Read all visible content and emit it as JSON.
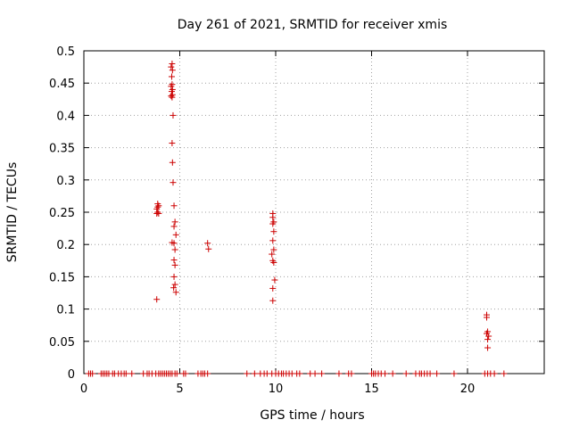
{
  "chart_data": {
    "type": "scatter",
    "title": "Day 261 of 2021, SRMTID for receiver xmis",
    "xlabel": "GPS time / hours",
    "ylabel": "SRMTID / TECUs",
    "xlim": [
      0,
      24
    ],
    "ylim": [
      0,
      0.5
    ],
    "xticks": [
      0,
      5,
      10,
      15,
      20
    ],
    "xtick_labels": [
      "0",
      "5",
      "10",
      "15",
      "20"
    ],
    "yticks": [
      0,
      0.05,
      0.1,
      0.15,
      0.2,
      0.25,
      0.3,
      0.35,
      0.4,
      0.45,
      0.5
    ],
    "ytick_labels": [
      "0",
      "0.05",
      "0.1",
      "0.15",
      "0.2",
      "0.25",
      "0.3",
      "0.35",
      "0.4",
      "0.45",
      "0.5"
    ],
    "grid": true,
    "marker": "+",
    "color": "#cc0000",
    "series": [
      {
        "name": "SRMTID",
        "points": [
          [
            3.8,
            0.115
          ],
          [
            3.8,
            0.248
          ],
          [
            3.85,
            0.25
          ],
          [
            3.9,
            0.248
          ],
          [
            3.8,
            0.255
          ],
          [
            3.85,
            0.258
          ],
          [
            3.9,
            0.26
          ],
          [
            3.85,
            0.263
          ],
          [
            4.55,
            0.475
          ],
          [
            4.6,
            0.48
          ],
          [
            4.62,
            0.47
          ],
          [
            4.58,
            0.46
          ],
          [
            4.6,
            0.448
          ],
          [
            4.55,
            0.445
          ],
          [
            4.62,
            0.44
          ],
          [
            4.58,
            0.437
          ],
          [
            4.62,
            0.432
          ],
          [
            4.55,
            0.43
          ],
          [
            4.6,
            0.428
          ],
          [
            4.65,
            0.4
          ],
          [
            4.6,
            0.357
          ],
          [
            4.62,
            0.327
          ],
          [
            4.65,
            0.296
          ],
          [
            4.7,
            0.26
          ],
          [
            4.75,
            0.235
          ],
          [
            4.7,
            0.228
          ],
          [
            4.8,
            0.215
          ],
          [
            4.6,
            0.203
          ],
          [
            4.7,
            0.202
          ],
          [
            4.75,
            0.192
          ],
          [
            4.7,
            0.176
          ],
          [
            4.75,
            0.168
          ],
          [
            4.7,
            0.15
          ],
          [
            4.75,
            0.138
          ],
          [
            4.68,
            0.133
          ],
          [
            4.8,
            0.126
          ],
          [
            6.45,
            0.202
          ],
          [
            6.5,
            0.193
          ],
          [
            9.85,
            0.248
          ],
          [
            9.85,
            0.242
          ],
          [
            9.9,
            0.235
          ],
          [
            9.85,
            0.232
          ],
          [
            9.9,
            0.22
          ],
          [
            9.85,
            0.206
          ],
          [
            9.9,
            0.192
          ],
          [
            9.8,
            0.185
          ],
          [
            9.85,
            0.175
          ],
          [
            9.9,
            0.172
          ],
          [
            9.95,
            0.145
          ],
          [
            9.85,
            0.132
          ],
          [
            9.85,
            0.113
          ],
          [
            21.0,
            0.091
          ],
          [
            21.0,
            0.087
          ],
          [
            21.05,
            0.065
          ],
          [
            21.0,
            0.062
          ],
          [
            21.1,
            0.058
          ],
          [
            21.05,
            0.053
          ],
          [
            21.05,
            0.04
          ],
          [
            0.25,
            0
          ],
          [
            0.35,
            0
          ],
          [
            0.45,
            0
          ],
          [
            0.9,
            0
          ],
          [
            1.0,
            0
          ],
          [
            1.1,
            0
          ],
          [
            1.2,
            0
          ],
          [
            1.3,
            0
          ],
          [
            1.5,
            0
          ],
          [
            1.6,
            0
          ],
          [
            1.8,
            0
          ],
          [
            1.95,
            0
          ],
          [
            2.1,
            0
          ],
          [
            2.2,
            0
          ],
          [
            2.5,
            0
          ],
          [
            3.1,
            0
          ],
          [
            3.3,
            0
          ],
          [
            3.4,
            0
          ],
          [
            3.55,
            0
          ],
          [
            3.75,
            0
          ],
          [
            3.9,
            0
          ],
          [
            4.0,
            0
          ],
          [
            4.1,
            0
          ],
          [
            4.2,
            0
          ],
          [
            4.3,
            0
          ],
          [
            4.4,
            0
          ],
          [
            4.5,
            0
          ],
          [
            4.6,
            0
          ],
          [
            4.75,
            0
          ],
          [
            4.85,
            0
          ],
          [
            5.2,
            0
          ],
          [
            5.3,
            0
          ],
          [
            5.95,
            0
          ],
          [
            6.1,
            0
          ],
          [
            6.2,
            0
          ],
          [
            6.3,
            0
          ],
          [
            6.45,
            0
          ],
          [
            8.5,
            0
          ],
          [
            8.9,
            0
          ],
          [
            9.2,
            0
          ],
          [
            9.4,
            0
          ],
          [
            9.55,
            0
          ],
          [
            9.8,
            0
          ],
          [
            10.0,
            0
          ],
          [
            10.15,
            0
          ],
          [
            10.3,
            0
          ],
          [
            10.4,
            0
          ],
          [
            10.55,
            0
          ],
          [
            10.7,
            0
          ],
          [
            10.85,
            0
          ],
          [
            11.1,
            0
          ],
          [
            11.25,
            0
          ],
          [
            11.8,
            0
          ],
          [
            12.05,
            0
          ],
          [
            12.4,
            0
          ],
          [
            13.3,
            0
          ],
          [
            13.8,
            0
          ],
          [
            13.95,
            0
          ],
          [
            15.0,
            0
          ],
          [
            15.1,
            0
          ],
          [
            15.2,
            0
          ],
          [
            15.35,
            0
          ],
          [
            15.5,
            0
          ],
          [
            15.7,
            0
          ],
          [
            16.1,
            0
          ],
          [
            16.8,
            0
          ],
          [
            17.3,
            0
          ],
          [
            17.5,
            0
          ],
          [
            17.6,
            0
          ],
          [
            17.75,
            0
          ],
          [
            17.9,
            0
          ],
          [
            18.05,
            0
          ],
          [
            18.4,
            0
          ],
          [
            19.3,
            0
          ],
          [
            20.9,
            0
          ],
          [
            21.05,
            0
          ],
          [
            21.2,
            0
          ],
          [
            21.4,
            0
          ],
          [
            21.9,
            0
          ]
        ]
      }
    ]
  }
}
